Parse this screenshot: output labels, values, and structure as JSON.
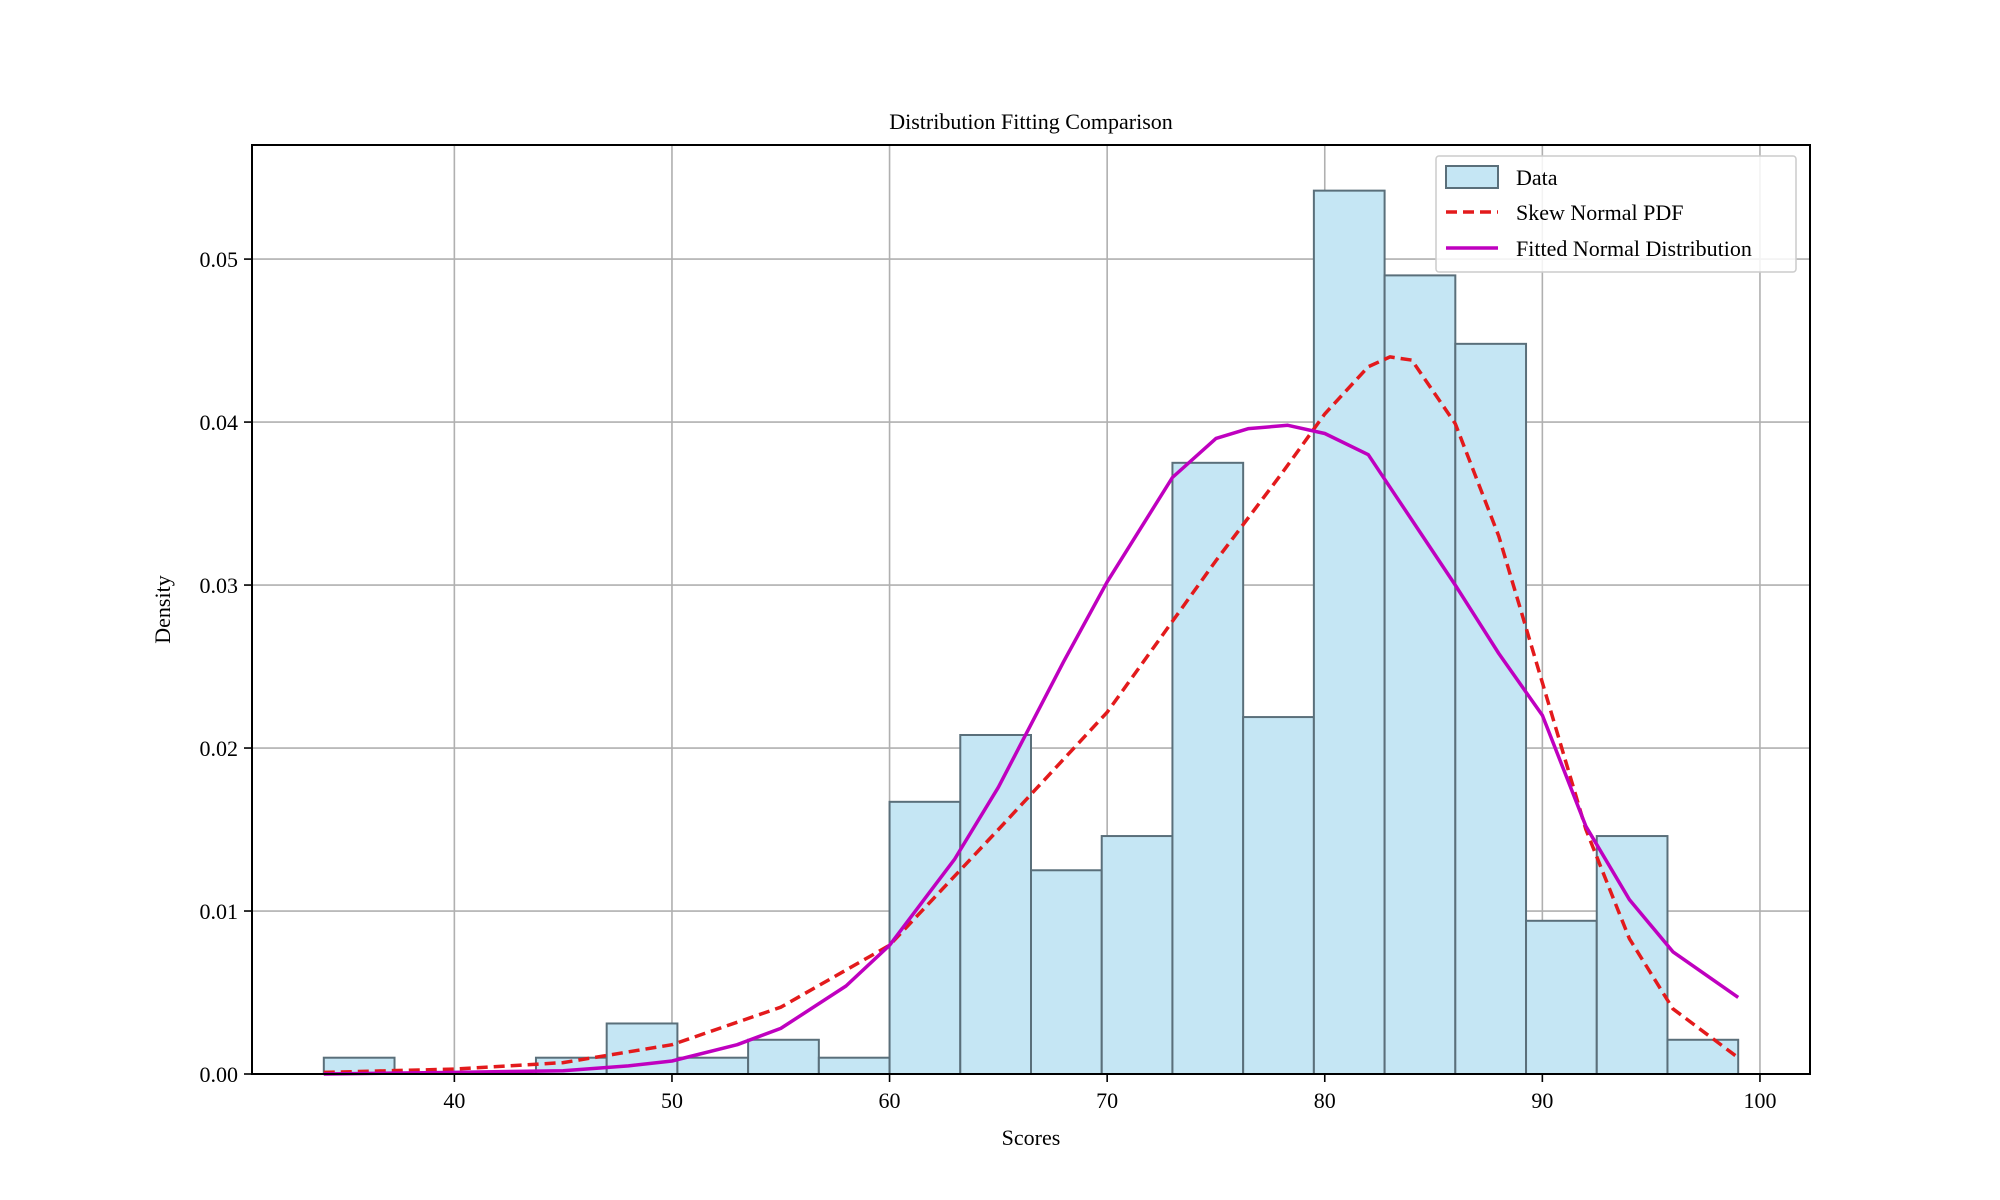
{
  "chart_data": {
    "type": "bar",
    "subtype": "histogram-with-fitted-curves",
    "title": "Distribution Fitting Comparison",
    "xlabel": "Scores",
    "ylabel": "Density",
    "xlim": [
      30.7,
      102.3
    ],
    "ylim": [
      0.0,
      0.057
    ],
    "xticks": [
      40,
      50,
      60,
      70,
      80,
      90,
      100
    ],
    "yticks": [
      0.0,
      0.01,
      0.02,
      0.03,
      0.04,
      0.05
    ],
    "ytick_labels": [
      "0.00",
      "0.01",
      "0.02",
      "0.03",
      "0.04",
      "0.05"
    ],
    "grid": true,
    "legend_position": "top-right",
    "legend": [
      "Data",
      "Skew Normal PDF",
      "Fitted Normal Distribution"
    ],
    "histogram": {
      "name": "Data",
      "bin_edges": [
        34.0,
        37.25,
        40.5,
        43.75,
        47.0,
        50.25,
        53.5,
        56.75,
        60.0,
        63.25,
        66.5,
        69.75,
        73.0,
        76.25,
        79.5,
        82.75,
        86.0,
        89.25,
        92.5,
        95.75,
        99.0
      ],
      "densities": [
        0.001,
        0.0,
        0.0,
        0.001,
        0.0031,
        0.001,
        0.0021,
        0.001,
        0.0167,
        0.0208,
        0.0125,
        0.0146,
        0.0375,
        0.0219,
        0.0542,
        0.049,
        0.0448,
        0.0094,
        0.0146,
        0.0021
      ],
      "fill": "#c5e6f4",
      "edge": "#5a6f7a"
    },
    "series": [
      {
        "name": "Skew Normal PDF",
        "style": "dashed",
        "color": "#e31a1c",
        "x": [
          34,
          40,
          45,
          50,
          55,
          60,
          65,
          70,
          75,
          78,
          80,
          82,
          83,
          84,
          86,
          88,
          90,
          92,
          94,
          96,
          99
        ],
        "y": [
          0.0001,
          0.0003,
          0.0007,
          0.0018,
          0.0041,
          0.0079,
          0.015,
          0.0222,
          0.0315,
          0.0368,
          0.0405,
          0.0434,
          0.044,
          0.0438,
          0.0399,
          0.033,
          0.024,
          0.015,
          0.0083,
          0.004,
          0.001
        ]
      },
      {
        "name": "Fitted Normal Distribution",
        "style": "solid",
        "color": "#bf00bf",
        "x": [
          34,
          40,
          45,
          48,
          50,
          53,
          55,
          58,
          60,
          63,
          65,
          68,
          70,
          73,
          75,
          76.5,
          78.3,
          80,
          82,
          84,
          86,
          88,
          90,
          92,
          94,
          96,
          99
        ],
        "y": [
          0.0,
          0.0001,
          0.0002,
          0.0005,
          0.0008,
          0.0018,
          0.0028,
          0.0054,
          0.0079,
          0.0132,
          0.0176,
          0.0253,
          0.0302,
          0.0366,
          0.039,
          0.0396,
          0.0398,
          0.0393,
          0.038,
          0.034,
          0.03,
          0.0258,
          0.022,
          0.0152,
          0.0107,
          0.0075,
          0.0047
        ]
      }
    ]
  }
}
